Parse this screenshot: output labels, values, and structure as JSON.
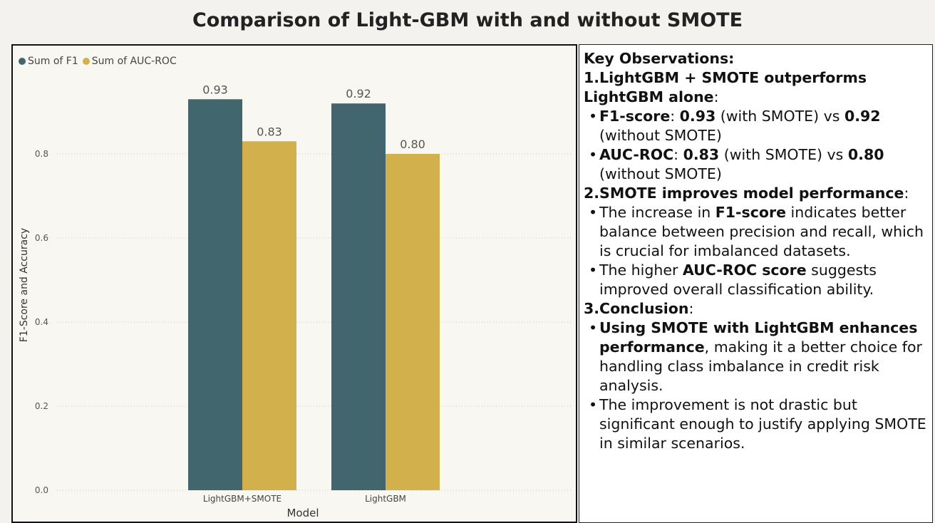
{
  "title": "Comparison of Light-GBM with and without SMOTE",
  "chart_data": {
    "type": "bar",
    "categories": [
      "LightGBM+SMOTE",
      "LightGBM"
    ],
    "series": [
      {
        "name": "Sum of F1",
        "values": [
          0.93,
          0.92
        ],
        "color": "#41666e",
        "labels": [
          "0.93",
          "0.92"
        ]
      },
      {
        "name": "Sum of AUC-ROC",
        "values": [
          0.83,
          0.8
        ],
        "color": "#d2b04c",
        "labels": [
          "0.83",
          "0.80"
        ]
      }
    ],
    "xlabel": "Model",
    "ylabel": "F1-Score and Accuracy",
    "ylim": [
      0,
      1.0
    ],
    "yticks": [
      "0.0",
      "0.2",
      "0.4",
      "0.6",
      "0.8"
    ],
    "grid": true,
    "legend": "top-left"
  },
  "observations": {
    "heading": "Key Observations:",
    "s1_title": "1.LightGBM + SMOTE outperforms LightGBM alone",
    "s1_b1": {
      "label": "F1-score",
      "a": "0.93",
      "mid": " (with SMOTE) vs ",
      "b": "0.92",
      "end": " (without SMOTE)"
    },
    "s1_b2": {
      "label": "AUC-ROC",
      "a": "0.83",
      "mid": " (with SMOTE) vs ",
      "b": "0.80",
      "end": " (without SMOTE)"
    },
    "s2_title": "2.SMOTE improves model performance",
    "s2_b1": {
      "pre": "The increase in ",
      "bold": "F1-score",
      "post": " indicates better balance between precision and recall, which is crucial for imbalanced datasets."
    },
    "s2_b2": {
      "pre": "The higher ",
      "bold": "AUC-ROC score",
      "post": " suggests improved overall classification ability."
    },
    "s3_title": "3.Conclusion",
    "s3_b1": {
      "bold": "Using SMOTE with LightGBM enhances performance",
      "post": ", making it a better choice for handling class imbalance in credit risk analysis."
    },
    "s3_b2": {
      "text": "The improvement is not drastic but significant enough to justify applying SMOTE in similar scenarios."
    }
  }
}
